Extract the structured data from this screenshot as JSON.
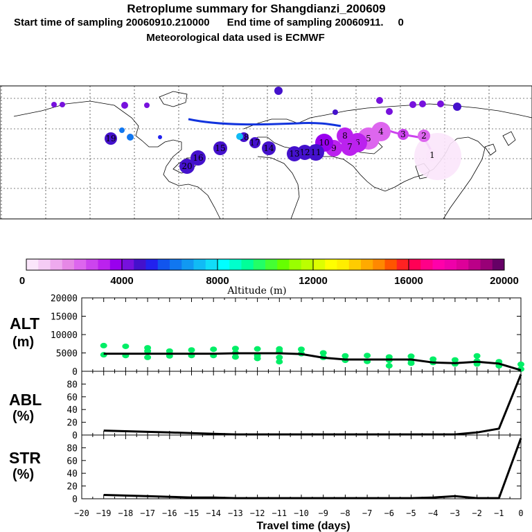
{
  "header": {
    "title": "Retroplume summary for Shangdianzi_200609",
    "start_label": "Start time of sampling 20060910.210000",
    "end_label": "End time of sampling 20060911.",
    "end_suffix": "0",
    "met_label": "Meteorological data used is ECMWF"
  },
  "colorbar": {
    "ticks": [
      "0",
      "4000",
      "8000",
      "12000",
      "16000",
      "20000"
    ],
    "label": "Altitude (m)",
    "min": 0,
    "max": 20000,
    "colors": [
      "#fbe6fb",
      "#f5ccf5",
      "#eeaaee",
      "#e688e6",
      "#dd66ee",
      "#cc44ee",
      "#bb22ee",
      "#9900ee",
      "#7711dd",
      "#4411cc",
      "#2222ee",
      "#1155ee",
      "#1177f0",
      "#1199f2",
      "#11bbf5",
      "#11ddf8",
      "#00ffff",
      "#00ffcc",
      "#00ff99",
      "#22ff66",
      "#44ff33",
      "#66ff00",
      "#99ff00",
      "#bbff00",
      "#ddff00",
      "#ffff00",
      "#ffee00",
      "#ffcc00",
      "#ffaa00",
      "#ff8800",
      "#ff5500",
      "#ff2222",
      "#ff0055",
      "#ff0088",
      "#ff00aa",
      "#ee00aa",
      "#dd0099",
      "#bb0088",
      "#990077",
      "#660066"
    ]
  },
  "map": {
    "labels": [
      "1",
      "2",
      "3",
      "4",
      "5",
      "6",
      "7",
      "8",
      "9",
      "10",
      "11",
      "12",
      "13",
      "14",
      "15",
      "16",
      "17",
      "18",
      "19",
      "20"
    ]
  },
  "panels": {
    "alt_label": "ALT",
    "alt_unit": "(m)",
    "abl_label": "ABL",
    "abl_unit": "(%)",
    "str_label": "STR",
    "str_unit": "(%)",
    "xlabel": "Travel time (days)"
  },
  "chart_data": [
    {
      "type": "line",
      "title": "ALT",
      "ylabel": "(m)",
      "xlabel": "Travel time (days)",
      "ylim": [
        0,
        20000
      ],
      "yticks": [
        0,
        5000,
        10000,
        15000,
        20000
      ],
      "xlim": [
        -20,
        0
      ],
      "xticks": [
        -20,
        -19,
        -18,
        -17,
        -16,
        -15,
        -14,
        -13,
        -12,
        -11,
        -10,
        -9,
        -8,
        -7,
        -6,
        -5,
        -4,
        -3,
        -2,
        -1,
        0
      ],
      "x": [
        0,
        -1,
        -2,
        -3,
        -4,
        -5,
        -6,
        -7,
        -8,
        -9,
        -10,
        -11,
        -12,
        -13,
        -14,
        -15,
        -16,
        -17,
        -18,
        -19
      ],
      "values": [
        300,
        2100,
        2600,
        2200,
        2400,
        3200,
        3200,
        3200,
        3200,
        3700,
        4700,
        4900,
        4900,
        4900,
        4800,
        4800,
        4800,
        4800,
        4800,
        4800
      ],
      "scatter_points": [
        {
          "x": 0,
          "y": 1900
        },
        {
          "x": 0,
          "y": 600
        },
        {
          "x": -1,
          "y": 2600
        },
        {
          "x": -1,
          "y": 1500
        },
        {
          "x": -2,
          "y": 4200
        },
        {
          "x": -2,
          "y": 2800
        },
        {
          "x": -2,
          "y": 2000
        },
        {
          "x": -3,
          "y": 3100
        },
        {
          "x": -3,
          "y": 2000
        },
        {
          "x": -4,
          "y": 3300
        },
        {
          "x": -4,
          "y": 2400
        },
        {
          "x": -5,
          "y": 4100
        },
        {
          "x": -5,
          "y": 3000
        },
        {
          "x": -5,
          "y": 2200
        },
        {
          "x": -6,
          "y": 3900
        },
        {
          "x": -6,
          "y": 3000
        },
        {
          "x": -6,
          "y": 1500
        },
        {
          "x": -7,
          "y": 4300
        },
        {
          "x": -7,
          "y": 2700
        },
        {
          "x": -8,
          "y": 4200
        },
        {
          "x": -8,
          "y": 3000
        },
        {
          "x": -9,
          "y": 5000
        },
        {
          "x": -9,
          "y": 3800
        },
        {
          "x": -10,
          "y": 6000
        },
        {
          "x": -10,
          "y": 4800
        },
        {
          "x": -11,
          "y": 6100
        },
        {
          "x": -11,
          "y": 5400
        },
        {
          "x": -11,
          "y": 3800
        },
        {
          "x": -11,
          "y": 2600
        },
        {
          "x": -12,
          "y": 6100
        },
        {
          "x": -12,
          "y": 4300
        },
        {
          "x": -12,
          "y": 3500
        },
        {
          "x": -13,
          "y": 6200
        },
        {
          "x": -13,
          "y": 5000
        },
        {
          "x": -13,
          "y": 3900
        },
        {
          "x": -14,
          "y": 6000
        },
        {
          "x": -14,
          "y": 4300
        },
        {
          "x": -15,
          "y": 5800
        },
        {
          "x": -15,
          "y": 4300
        },
        {
          "x": -16,
          "y": 5500
        },
        {
          "x": -16,
          "y": 4200
        },
        {
          "x": -17,
          "y": 6400
        },
        {
          "x": -17,
          "y": 5500
        },
        {
          "x": -17,
          "y": 3800
        },
        {
          "x": -18,
          "y": 6800
        },
        {
          "x": -18,
          "y": 4300
        },
        {
          "x": -19,
          "y": 7000
        },
        {
          "x": -19,
          "y": 4500
        }
      ],
      "color": "#00ee66"
    },
    {
      "type": "line",
      "title": "ABL",
      "ylabel": "(%)",
      "ylim": [
        0,
        100
      ],
      "yticks": [
        0,
        20,
        40,
        60,
        80
      ],
      "x": [
        0,
        -1,
        -2,
        -3,
        -4,
        -5,
        -6,
        -7,
        -8,
        -9,
        -10,
        -11,
        -12,
        -13,
        -14,
        -15,
        -16,
        -17,
        -18,
        -19
      ],
      "values": [
        95,
        10,
        4,
        1,
        1,
        1,
        1,
        1,
        1,
        1,
        1,
        1,
        1,
        1,
        2,
        3,
        4,
        5,
        6,
        7
      ]
    },
    {
      "type": "line",
      "title": "STR",
      "ylabel": "(%)",
      "ylim": [
        0,
        100
      ],
      "yticks": [
        0,
        20,
        40,
        60,
        80
      ],
      "x": [
        0,
        -1,
        -2,
        -3,
        -4,
        -5,
        -6,
        -7,
        -8,
        -9,
        -10,
        -11,
        -12,
        -13,
        -14,
        -15,
        -16,
        -17,
        -18,
        -19
      ],
      "values": [
        95,
        1,
        1,
        4,
        2,
        1,
        1,
        1,
        1,
        1,
        1,
        1,
        1,
        1,
        2,
        2,
        3,
        4,
        5,
        6
      ]
    }
  ]
}
